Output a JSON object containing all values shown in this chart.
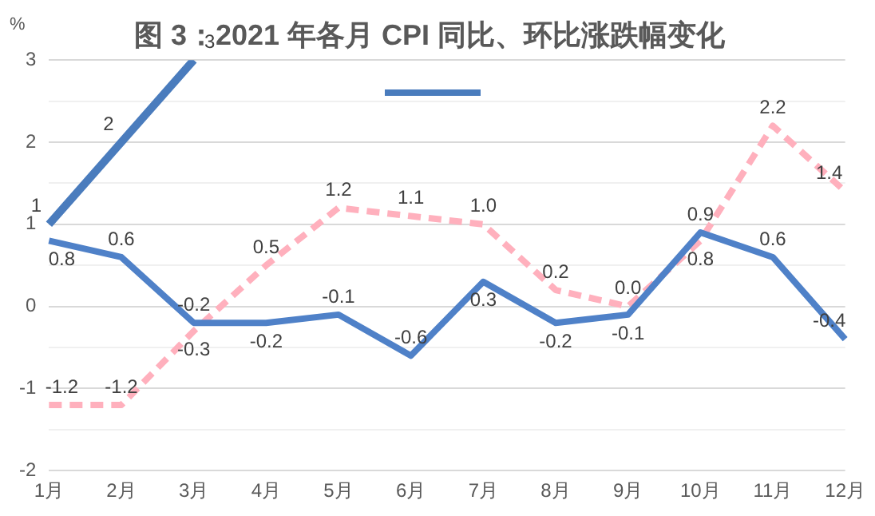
{
  "chart_data": {
    "type": "line",
    "title": "图 3：2021 年各月 CPI 同比、环比涨跌幅变化",
    "ylabel": "%",
    "categories": [
      "1月",
      "2月",
      "3月",
      "4月",
      "5月",
      "6月",
      "7月",
      "8月",
      "9月",
      "10月",
      "11月",
      "12月"
    ],
    "series": [
      {
        "color": "#4f81c8",
        "values": [
          0.8,
          0.6,
          -0.2,
          -0.2,
          -0.1,
          -0.6,
          0.3,
          -0.2,
          -0.1,
          0.9,
          0.6,
          -0.4
        ],
        "value_labels": [
          "0.8",
          "0.6",
          "-0.2",
          "-0.2",
          "-0.1",
          "-0.6",
          "0.3",
          "-0.2",
          "-0.1",
          "0.9",
          "0.6",
          "-0.4"
        ]
      },
      {
        "color": "#ffb0bd",
        "line_style": "dashed",
        "values": [
          -1.2,
          -1.2,
          -0.3,
          0.5,
          1.2,
          1.1,
          1.0,
          0.2,
          0.0,
          0.8,
          2.2,
          1.4
        ],
        "value_labels": [
          "-1.2",
          "-1.2",
          "-0.3",
          "0.5",
          "1.2",
          "1.1",
          "1.0",
          "0.2",
          "0.0",
          "0.8",
          "2.2",
          "1.4"
        ]
      },
      {
        "color": "#4a7cbd",
        "values": [
          1,
          2,
          3,
          null,
          null,
          null,
          null,
          null,
          null,
          null,
          null,
          null
        ],
        "value_labels": [
          "1",
          "2",
          "3",
          null,
          null,
          null,
          null,
          null,
          null,
          null,
          null,
          null
        ]
      }
    ],
    "ylim": [
      -2,
      3
    ],
    "yticks": [
      -2,
      {
        "value": -1.5,
        "label": null
      },
      -1,
      {
        "value": -0.5,
        "label": null
      },
      0,
      {
        "value": 0.5,
        "label": null
      },
      1,
      {
        "value": 1.5,
        "label": null
      },
      2,
      {
        "value": 2.5,
        "label": null
      },
      3
    ],
    "grid": "y",
    "marker": "none"
  }
}
